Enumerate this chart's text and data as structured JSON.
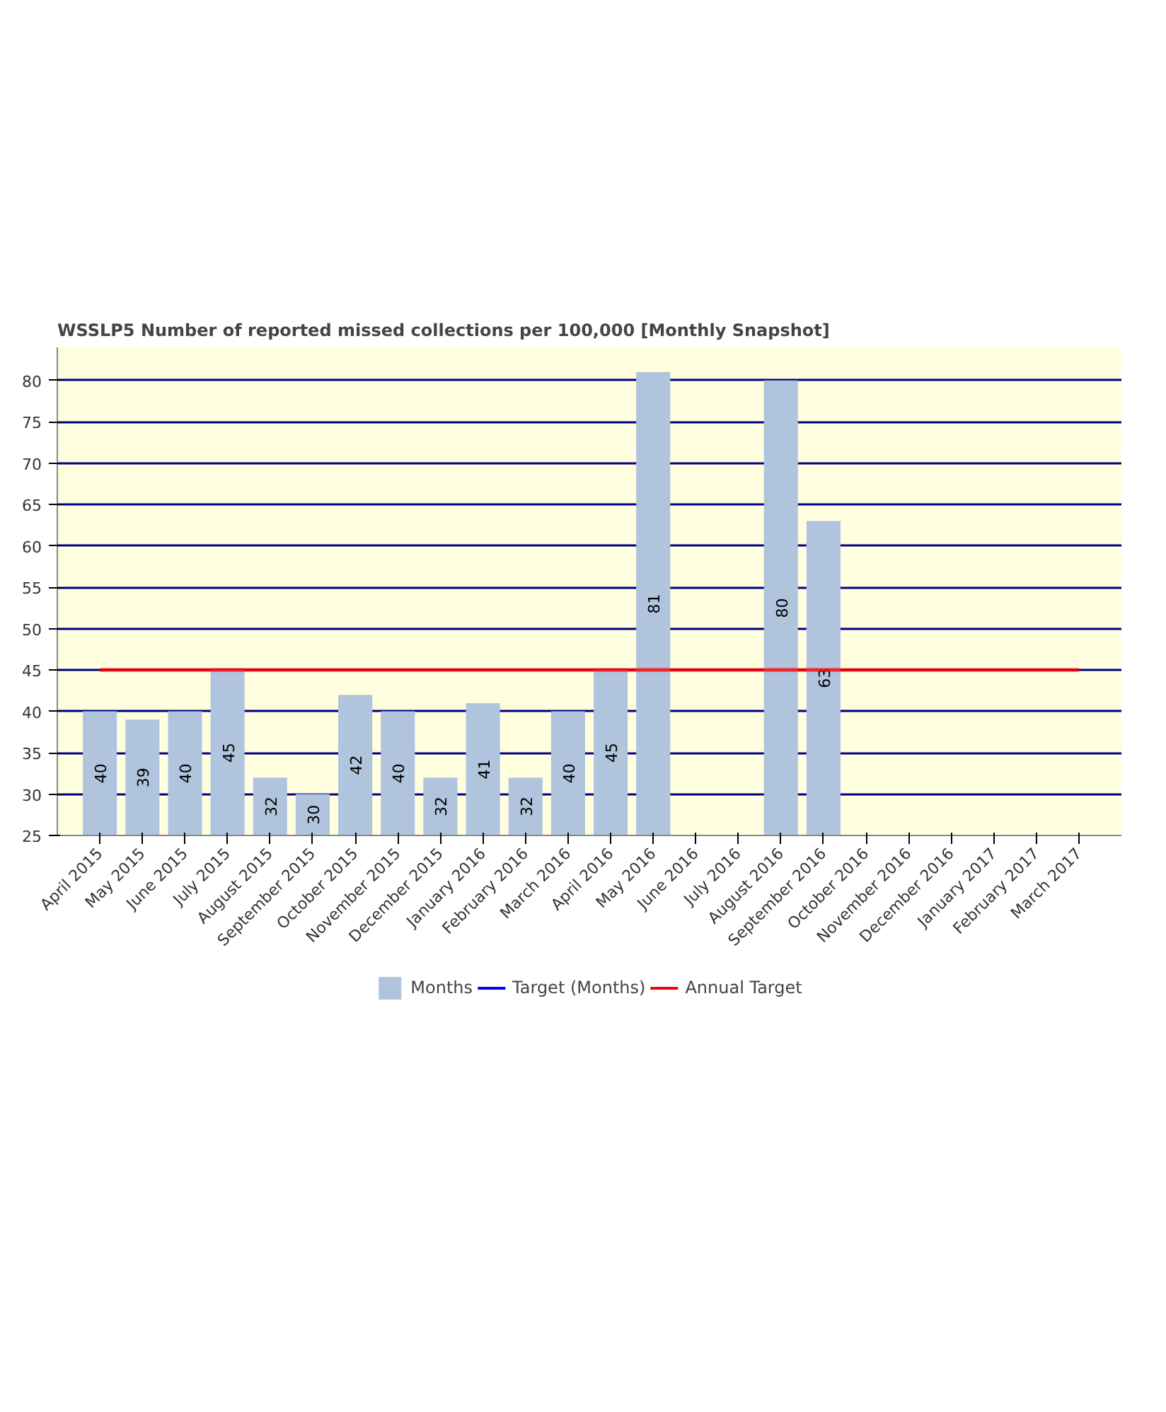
{
  "chart_data": {
    "type": "bar",
    "title": "WSSLP5 Number of reported missed collections per 100,000 [Monthly Snapshot]",
    "categories": [
      "April 2015",
      "May 2015",
      "June 2015",
      "July 2015",
      "August 2015",
      "September 2015",
      "October 2015",
      "November 2015",
      "December 2015",
      "January 2016",
      "February 2016",
      "March 2016",
      "April 2016",
      "May 2016",
      "June 2016",
      "July 2016",
      "August 2016",
      "September 2016",
      "October 2016",
      "November 2016",
      "December 2016",
      "January 2017",
      "February 2017",
      "March 2017"
    ],
    "series": [
      {
        "name": "Months",
        "color": "#b0c4de",
        "values": [
          40,
          39,
          40,
          45,
          32,
          30,
          42,
          40,
          32,
          41,
          32,
          40,
          45,
          81,
          null,
          null,
          80,
          63,
          null,
          null,
          null,
          null,
          null,
          null
        ],
        "value_labels": [
          "40",
          "39",
          "40",
          "45",
          "32",
          "30",
          "42",
          "40",
          "32",
          "41",
          "32",
          "40",
          "45",
          "81",
          null,
          null,
          "80",
          "63",
          null,
          null,
          null,
          null,
          null,
          null
        ]
      },
      {
        "name": "Target (Months)",
        "type": "line",
        "color": "#0000ff",
        "values": [
          null,
          null,
          null,
          null,
          null,
          null,
          null,
          null,
          null,
          null,
          null,
          null,
          null,
          null,
          null,
          null,
          null,
          null,
          null,
          null,
          null,
          null,
          null,
          null
        ]
      },
      {
        "name": "Annual Target",
        "type": "line",
        "color": "#ff0000",
        "values": [
          45,
          45,
          45,
          45,
          45,
          45,
          45,
          45,
          45,
          45,
          45,
          45,
          45,
          45,
          45,
          45,
          45,
          45,
          45,
          45,
          45,
          45,
          45,
          45
        ]
      }
    ],
    "ylim": [
      25,
      84
    ],
    "yticks": [
      25,
      30,
      35,
      40,
      45,
      50,
      55,
      60,
      65,
      70,
      75,
      80
    ],
    "grid": "y",
    "legend": "bottom"
  }
}
